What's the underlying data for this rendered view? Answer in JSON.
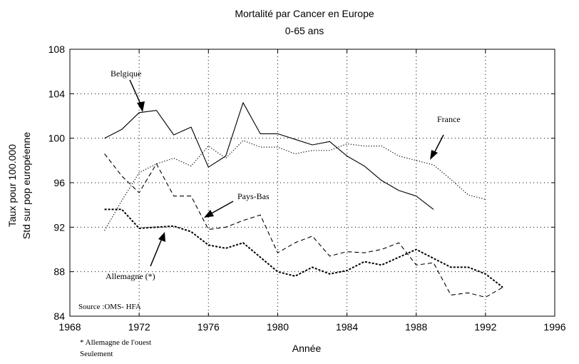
{
  "chart_data": {
    "type": "line",
    "title": "Mortalité par Cancer  en  Europe",
    "subtitle": "0-65 ans",
    "xlabel": "Année",
    "ylabel_line1": "Taux pour 100.000",
    "ylabel_line2": "Std sur pop européenne",
    "xlim": [
      1968,
      1996
    ],
    "ylim": [
      84,
      108
    ],
    "xticks": [
      1968,
      1972,
      1976,
      1980,
      1984,
      1988,
      1992,
      1996
    ],
    "yticks": [
      84,
      88,
      92,
      96,
      100,
      104,
      108
    ],
    "grid": "dotted",
    "source": "Source :OMS- HFA",
    "footnote_line1": "* Allemagne de l'ouest",
    "footnote_line2": "Seulement",
    "series": [
      {
        "name": "Belgique",
        "style": "solid",
        "points": [
          [
            1970,
            100
          ],
          [
            1971,
            100.8
          ],
          [
            1972,
            102.3
          ],
          [
            1973,
            102.5
          ],
          [
            1974,
            100.3
          ],
          [
            1975,
            101
          ],
          [
            1976,
            97.4
          ],
          [
            1977,
            98.4
          ],
          [
            1978,
            103.2
          ],
          [
            1979,
            100.4
          ],
          [
            1980,
            100.4
          ],
          [
            1981,
            99.9
          ],
          [
            1982,
            99.4
          ],
          [
            1983,
            99.7
          ],
          [
            1984,
            98.4
          ],
          [
            1985,
            97.5
          ],
          [
            1986,
            96.2
          ],
          [
            1987,
            95.3
          ],
          [
            1988,
            94.8
          ],
          [
            1989,
            93.6
          ]
        ]
      },
      {
        "name": "France",
        "style": "dotted",
        "points": [
          [
            1970,
            91.7
          ],
          [
            1971,
            94.4
          ],
          [
            1972,
            96.9
          ],
          [
            1973,
            97.7
          ],
          [
            1974,
            98.2
          ],
          [
            1975,
            97.5
          ],
          [
            1976,
            99.3
          ],
          [
            1977,
            98.2
          ],
          [
            1978,
            99.8
          ],
          [
            1979,
            99.2
          ],
          [
            1980,
            99.2
          ],
          [
            1981,
            98.6
          ],
          [
            1982,
            98.9
          ],
          [
            1983,
            98.9
          ],
          [
            1984,
            99.5
          ],
          [
            1985,
            99.3
          ],
          [
            1986,
            99.3
          ],
          [
            1987,
            98.4
          ],
          [
            1988,
            98
          ],
          [
            1989,
            97.6
          ],
          [
            1990,
            96.3
          ],
          [
            1991,
            94.9
          ],
          [
            1992,
            94.5
          ]
        ]
      },
      {
        "name": "Pays-Bas",
        "style": "dashed",
        "points": [
          [
            1970,
            98.6
          ],
          [
            1971,
            96.6
          ],
          [
            1972,
            95.1
          ],
          [
            1973,
            97.7
          ],
          [
            1974,
            94.8
          ],
          [
            1975,
            94.8
          ],
          [
            1976,
            91.8
          ],
          [
            1977,
            92
          ],
          [
            1978,
            92.6
          ],
          [
            1979,
            93.1
          ],
          [
            1980,
            89.7
          ],
          [
            1981,
            90.6
          ],
          [
            1982,
            91.2
          ],
          [
            1983,
            89.4
          ],
          [
            1984,
            89.8
          ],
          [
            1985,
            89.7
          ],
          [
            1986,
            90
          ],
          [
            1987,
            90.6
          ],
          [
            1988,
            88.6
          ],
          [
            1989,
            88.8
          ],
          [
            1990,
            85.9
          ],
          [
            1991,
            86.1
          ],
          [
            1992,
            85.7
          ],
          [
            1993,
            86.6
          ]
        ]
      },
      {
        "name": "Allemagne (*)",
        "style": "dashdot",
        "points": [
          [
            1970,
            93.6
          ],
          [
            1971,
            93.6
          ],
          [
            1972,
            91.9
          ],
          [
            1973,
            92
          ],
          [
            1974,
            92.1
          ],
          [
            1975,
            91.6
          ],
          [
            1976,
            90.4
          ],
          [
            1977,
            90.1
          ],
          [
            1978,
            90.6
          ],
          [
            1979,
            89.3
          ],
          [
            1980,
            88
          ],
          [
            1981,
            87.6
          ],
          [
            1982,
            88.4
          ],
          [
            1983,
            87.8
          ],
          [
            1984,
            88.1
          ],
          [
            1985,
            88.9
          ],
          [
            1986,
            88.6
          ],
          [
            1987,
            89.3
          ],
          [
            1988,
            90
          ],
          [
            1989,
            89.2
          ],
          [
            1990,
            88.4
          ],
          [
            1991,
            88.4
          ],
          [
            1992,
            87.8
          ],
          [
            1993,
            86.6
          ]
        ]
      }
    ]
  }
}
